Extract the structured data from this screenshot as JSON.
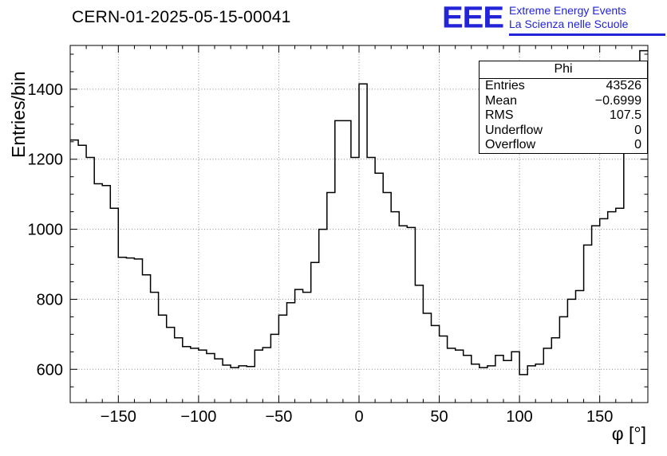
{
  "title": "CERN-01-2025-05-15-00041",
  "logo": {
    "acronym": "EEE",
    "line1": "Extreme Energy Events",
    "line2": "La Scienza nelle Scuole",
    "color": "#2323d7"
  },
  "stats_box": {
    "title": "Phi",
    "rows": [
      {
        "label": "Entries",
        "value": "43526"
      },
      {
        "label": "Mean",
        "value": "−0.6999"
      },
      {
        "label": "RMS",
        "value": "107.5"
      },
      {
        "label": "Underflow",
        "value": "0"
      },
      {
        "label": "Overflow",
        "value": "0"
      }
    ]
  },
  "chart_data": {
    "type": "bar",
    "subtype": "step-histogram",
    "title": "CERN-01-2025-05-15-00041",
    "xlabel": "φ [°]",
    "ylabel": "Entries/bin",
    "xlim": [
      -180,
      180
    ],
    "ylim": [
      505,
      1525
    ],
    "x_ticks": [
      -150,
      -100,
      -50,
      0,
      50,
      100,
      150
    ],
    "y_ticks": [
      600,
      800,
      1000,
      1200,
      1400
    ],
    "x_minor_step": 10,
    "y_minor_step": 50,
    "grid": true,
    "line_color": "#000000",
    "bin_width": 5,
    "x_start": -180,
    "values": [
      1255,
      1240,
      1205,
      1130,
      1125,
      1060,
      920,
      918,
      915,
      870,
      820,
      755,
      720,
      690,
      665,
      660,
      655,
      645,
      630,
      612,
      605,
      610,
      608,
      655,
      662,
      700,
      755,
      790,
      828,
      820,
      905,
      1000,
      1105,
      1310,
      1310,
      1205,
      1415,
      1205,
      1160,
      1105,
      1050,
      1010,
      1005,
      840,
      760,
      725,
      695,
      660,
      655,
      640,
      615,
      605,
      610,
      640,
      625,
      650,
      585,
      610,
      615,
      660,
      690,
      750,
      800,
      825,
      955,
      1010,
      1030,
      1050,
      1060,
      1285,
      1290,
      1510
    ]
  }
}
